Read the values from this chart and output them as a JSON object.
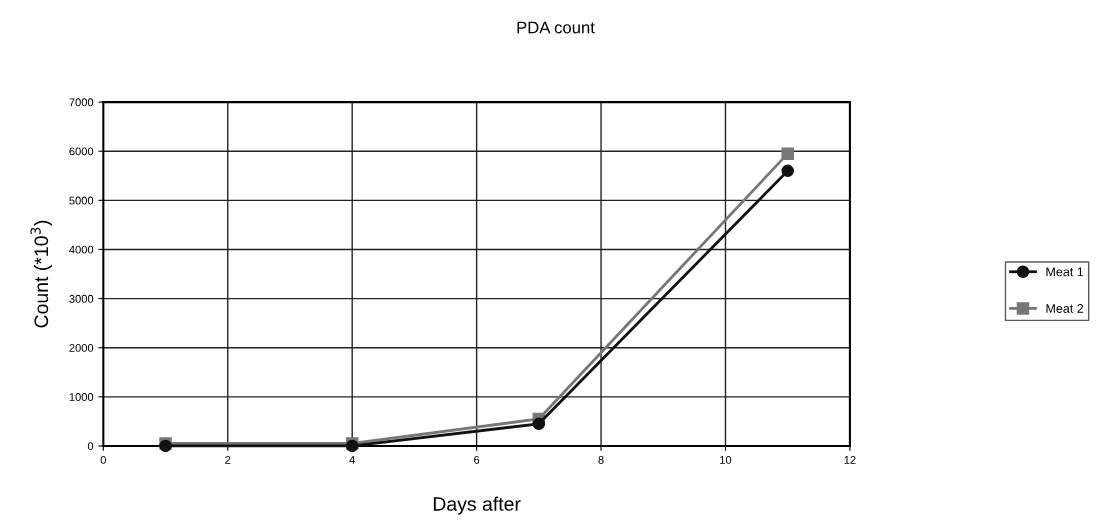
{
  "chart_data": {
    "type": "line",
    "title": "PDA count",
    "xlabel": "Days after",
    "ylabel": "Count (*10$^{3}$)",
    "x": [
      1,
      4,
      7,
      11
    ],
    "series": [
      {
        "name": "Meat 1",
        "color": "#111111",
        "values": [
          0,
          0,
          450,
          5600
        ],
        "marker": "circle"
      },
      {
        "name": "Meat 2",
        "color": "#777777",
        "values": [
          50,
          50,
          550,
          5950
        ],
        "marker": "square"
      }
    ],
    "xlim": [
      0,
      12
    ],
    "xticks": [
      0,
      2,
      4,
      6,
      8,
      10,
      12
    ],
    "ylim": [
      0,
      7000
    ],
    "yticks": [
      0,
      1000,
      2000,
      3000,
      4000,
      5000,
      6000,
      7000
    ],
    "grid": true,
    "legend": "right",
    "line_style": "solid"
  }
}
